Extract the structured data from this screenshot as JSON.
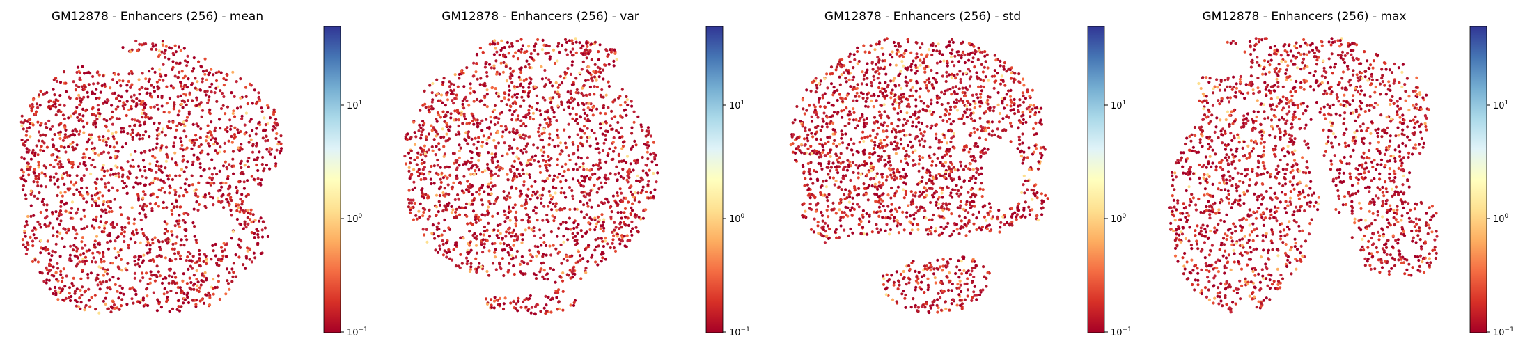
{
  "chart_data": [
    {
      "type": "scatter",
      "title": "GM12878 - Enhancers (256) - mean",
      "colorbar": {
        "scale": "log",
        "range": [
          0.1,
          50
        ],
        "colormap": "RdYlBu",
        "ticks": [
          {
            "base": "10",
            "exp": "1",
            "value": 10
          },
          {
            "base": "10",
            "exp": "0",
            "value": 1
          },
          {
            "base": "10",
            "exp": "−1",
            "value": 0.1
          }
        ]
      },
      "grid": false,
      "axes": "off"
    },
    {
      "type": "scatter",
      "title": "GM12878 - Enhancers (256) - var",
      "colorbar": {
        "scale": "log",
        "range": [
          0.1,
          50
        ],
        "colormap": "RdYlBu",
        "ticks": [
          {
            "base": "10",
            "exp": "1",
            "value": 10
          },
          {
            "base": "10",
            "exp": "0",
            "value": 1
          },
          {
            "base": "10",
            "exp": "−1",
            "value": 0.1
          }
        ]
      },
      "grid": false,
      "axes": "off"
    },
    {
      "type": "scatter",
      "title": "GM12878 - Enhancers (256) - std",
      "colorbar": {
        "scale": "log",
        "range": [
          0.1,
          50
        ],
        "colormap": "RdYlBu",
        "ticks": [
          {
            "base": "10",
            "exp": "1",
            "value": 10
          },
          {
            "base": "10",
            "exp": "0",
            "value": 1
          },
          {
            "base": "10",
            "exp": "−1",
            "value": 0.1
          }
        ]
      },
      "grid": false,
      "axes": "off"
    },
    {
      "type": "scatter",
      "title": "GM12878 - Enhancers (256) - max",
      "colorbar": {
        "scale": "log",
        "range": [
          0.1,
          50
        ],
        "colormap": "RdYlBu",
        "ticks": [
          {
            "base": "10",
            "exp": "1",
            "value": 10
          },
          {
            "base": "10",
            "exp": "0",
            "value": 1
          },
          {
            "base": "10",
            "exp": "−1",
            "value": 0.1
          }
        ]
      },
      "grid": false,
      "axes": "off"
    }
  ],
  "colors": {
    "colormap_stops": [
      "#a50026",
      "#d73027",
      "#f46d43",
      "#fdae61",
      "#fee090",
      "#ffffbf",
      "#e0f3f8",
      "#abd9e9",
      "#74add1",
      "#4575b4",
      "#313695"
    ],
    "point_palette": [
      "#a50026",
      "#b2182b",
      "#c2263a",
      "#d73027",
      "#e34a33",
      "#f46d43",
      "#fdae61",
      "#fee090"
    ]
  }
}
